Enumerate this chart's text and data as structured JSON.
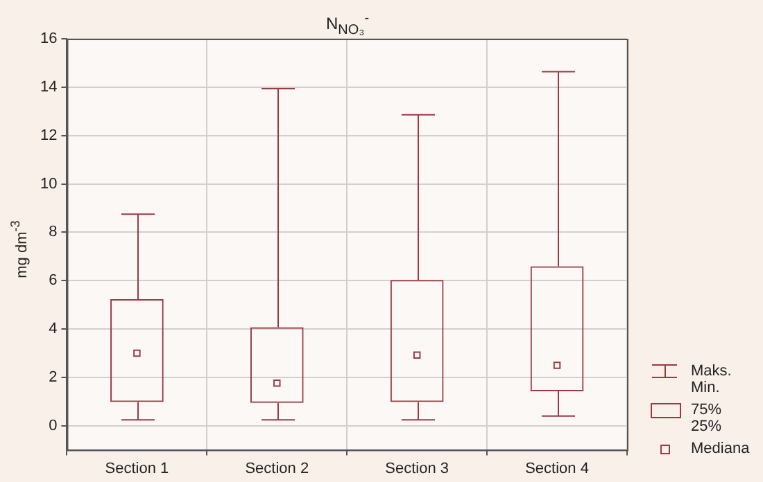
{
  "chart_data": {
    "type": "box",
    "title": "N$_{NO₃}$$^{-}$",
    "ylabel": "mg dm$^{-3}$",
    "categories": [
      "Section 1",
      "Section 2",
      "Section 3",
      "Section 4"
    ],
    "series": [
      {
        "color": "#9a3a44",
        "boxes": [
          {
            "low": 0.24,
            "q1": 0.98,
            "median": 3.0,
            "q3": 5.23,
            "high": 8.75
          },
          {
            "low": 0.24,
            "q1": 0.94,
            "median": 1.76,
            "q3": 4.07,
            "high": 13.94
          },
          {
            "low": 0.24,
            "q1": 0.98,
            "median": 2.92,
            "q3": 6.03,
            "high": 12.86
          },
          {
            "low": 0.4,
            "q1": 1.42,
            "median": 2.5,
            "q3": 6.59,
            "high": 14.64
          }
        ]
      }
    ],
    "ylim": [
      -1,
      16
    ],
    "yticks": [
      0,
      2,
      4,
      6,
      8,
      10,
      12,
      14,
      16
    ],
    "grid": true,
    "marker": "square",
    "annotations": [
      "Maks.\nMin.",
      "75%\n25%",
      "Mediana"
    ]
  }
}
